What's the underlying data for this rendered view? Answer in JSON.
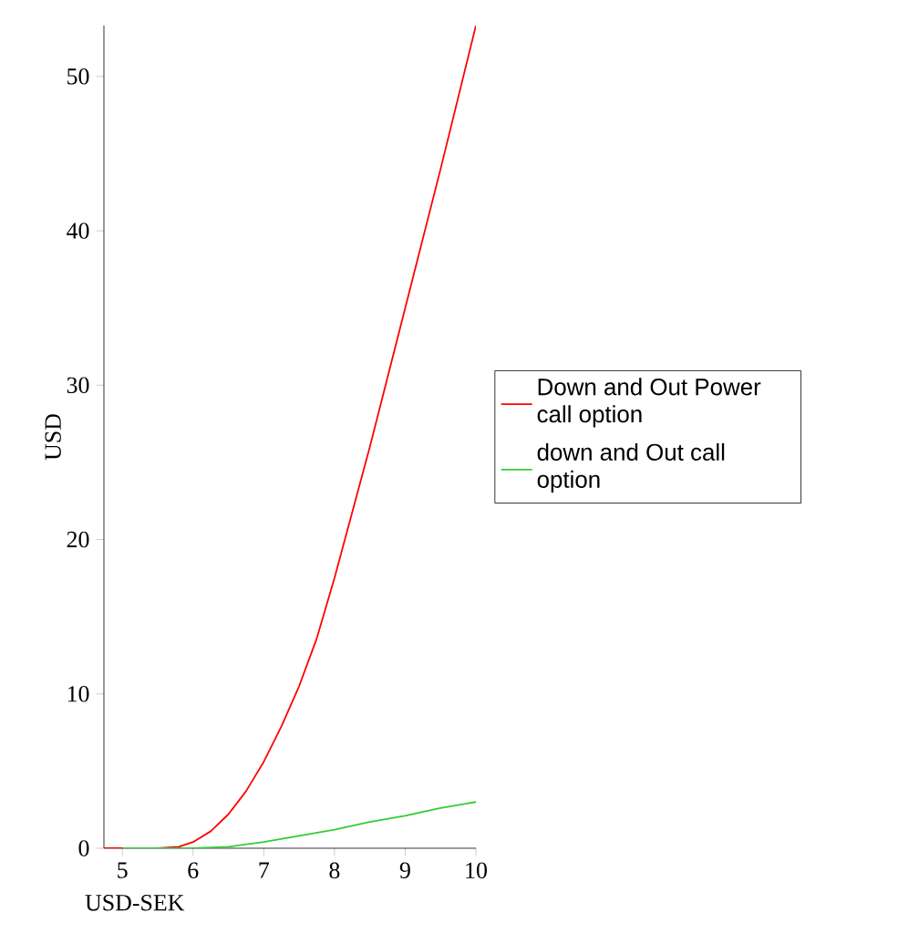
{
  "chart_data": {
    "type": "line",
    "xlabel": "USD-SEK",
    "ylabel": "USD",
    "xlim": [
      4.74,
      10
    ],
    "ylim": [
      0,
      53.3
    ],
    "xticks": [
      5,
      6,
      7,
      8,
      9,
      10
    ],
    "yticks": [
      0,
      10,
      20,
      30,
      40,
      50
    ],
    "legend": "right",
    "marker": "none",
    "line_style": "solid",
    "series": [
      {
        "name": "Down and Out Power call option",
        "color": "#ff0000",
        "x": [
          4.74,
          5,
          5.5,
          5.8,
          6,
          6.25,
          6.5,
          6.75,
          7,
          7.25,
          7.5,
          7.75,
          8,
          8.5,
          9,
          9.5,
          10
        ],
        "values": [
          0,
          0,
          0,
          0.1,
          0.4,
          1.1,
          2.2,
          3.7,
          5.6,
          7.9,
          10.5,
          13.6,
          17.5,
          26,
          35,
          44,
          53.3
        ]
      },
      {
        "name": "down and Out call option",
        "color": "#33cc33",
        "x": [
          5,
          5.5,
          6,
          6.5,
          7,
          7.5,
          8,
          8.5,
          9,
          9.5,
          10
        ],
        "values": [
          0,
          0,
          0,
          0.1,
          0.4,
          0.8,
          1.2,
          1.7,
          2.1,
          2.6,
          3
        ]
      }
    ]
  }
}
